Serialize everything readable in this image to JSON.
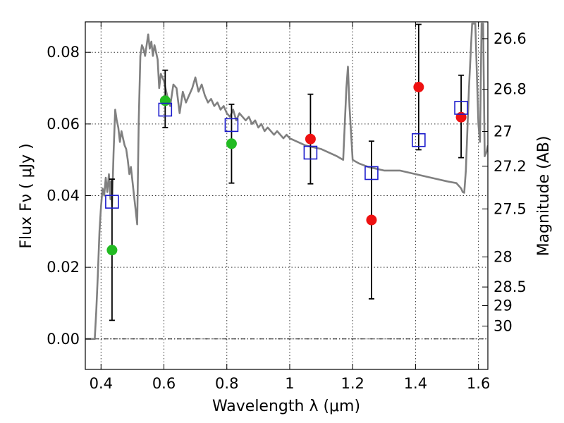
{
  "chart_data": {
    "type": "scatter",
    "xlabel": "Wavelength  λ (μm)",
    "ylabel": "Flux  Fν  ( μJy )",
    "ylabel_right": "Magnitude (AB)",
    "xlim": [
      0.35,
      1.63
    ],
    "ylim": [
      -0.0085,
      0.0885
    ],
    "x_ticks": [
      0.4,
      0.6,
      0.8,
      1.0,
      1.2,
      1.4,
      1.6
    ],
    "x_tick_labels": [
      "0.4",
      "0.6",
      "0.8",
      "1",
      "1.2",
      "1.4",
      "1.6"
    ],
    "y_ticks": [
      0.0,
      0.02,
      0.04,
      0.06,
      0.08
    ],
    "y_tick_labels": [
      "0.00",
      "0.02",
      "0.04",
      "0.06",
      "0.08"
    ],
    "right_ticks": [
      {
        "label": "26.6",
        "flux": 0.0838
      },
      {
        "label": "26.8",
        "flux": 0.0697
      },
      {
        "label": "27",
        "flux": 0.0579
      },
      {
        "label": "27.2",
        "flux": 0.0482
      },
      {
        "label": "27.5",
        "flux": 0.0363
      },
      {
        "label": "28",
        "flux": 0.0229
      },
      {
        "label": "28.5",
        "flux": 0.0145
      },
      {
        "label": "29",
        "flux": 0.0093
      },
      {
        "label": "30",
        "flux": 0.0036
      }
    ],
    "grid": true,
    "colors": {
      "model": "#808080",
      "green_points": "#22bb22",
      "red_points": "#ee1111",
      "model_points": "#1a1acc",
      "errorbar": "#000000"
    },
    "model_spectrum": {
      "x": [
        0.35,
        0.38,
        0.385,
        0.39,
        0.395,
        0.4,
        0.405,
        0.41,
        0.415,
        0.42,
        0.425,
        0.43,
        0.432,
        0.435,
        0.44,
        0.445,
        0.45,
        0.455,
        0.46,
        0.465,
        0.47,
        0.475,
        0.48,
        0.485,
        0.49,
        0.495,
        0.5,
        0.505,
        0.51,
        0.515,
        0.52,
        0.525,
        0.53,
        0.535,
        0.54,
        0.545,
        0.55,
        0.555,
        0.56,
        0.565,
        0.57,
        0.575,
        0.58,
        0.585,
        0.59,
        0.6,
        0.61,
        0.62,
        0.63,
        0.64,
        0.65,
        0.66,
        0.67,
        0.68,
        0.69,
        0.7,
        0.71,
        0.72,
        0.73,
        0.74,
        0.75,
        0.76,
        0.77,
        0.78,
        0.79,
        0.8,
        0.81,
        0.82,
        0.83,
        0.84,
        0.85,
        0.86,
        0.87,
        0.88,
        0.89,
        0.9,
        0.91,
        0.92,
        0.93,
        0.94,
        0.95,
        0.96,
        0.97,
        0.98,
        0.99,
        1.0,
        1.05,
        1.1,
        1.15,
        1.17,
        1.18,
        1.185,
        1.19,
        1.2,
        1.22,
        1.25,
        1.3,
        1.35,
        1.4,
        1.45,
        1.5,
        1.53,
        1.535,
        1.54,
        1.545,
        1.55,
        1.555,
        1.56,
        1.57,
        1.58,
        1.59,
        1.6,
        1.605,
        1.61,
        1.615,
        1.62,
        1.625,
        1.63
      ],
      "y": [
        0.0,
        0.0,
        0.008,
        0.018,
        0.03,
        0.037,
        0.042,
        0.04,
        0.045,
        0.041,
        0.046,
        0.039,
        0.044,
        0.037,
        0.052,
        0.064,
        0.061,
        0.059,
        0.055,
        0.058,
        0.056,
        0.054,
        0.053,
        0.05,
        0.046,
        0.048,
        0.044,
        0.04,
        0.036,
        0.032,
        0.061,
        0.079,
        0.082,
        0.081,
        0.079,
        0.082,
        0.085,
        0.081,
        0.083,
        0.079,
        0.082,
        0.08,
        0.078,
        0.07,
        0.074,
        0.072,
        0.068,
        0.065,
        0.071,
        0.07,
        0.063,
        0.069,
        0.066,
        0.068,
        0.07,
        0.073,
        0.069,
        0.071,
        0.068,
        0.066,
        0.067,
        0.065,
        0.066,
        0.064,
        0.065,
        0.063,
        0.062,
        0.064,
        0.061,
        0.063,
        0.062,
        0.061,
        0.062,
        0.06,
        0.061,
        0.059,
        0.06,
        0.058,
        0.059,
        0.058,
        0.057,
        0.058,
        0.057,
        0.056,
        0.057,
        0.056,
        0.054,
        0.053,
        0.051,
        0.05,
        0.07,
        0.076,
        0.065,
        0.05,
        0.049,
        0.048,
        0.047,
        0.047,
        0.046,
        0.045,
        0.044,
        0.0435,
        0.043,
        0.0425,
        0.042,
        0.041,
        0.0408,
        0.047,
        0.07,
        0.088,
        0.088,
        0.06,
        0.055,
        0.088,
        0.088,
        0.051,
        0.052,
        0.054
      ]
    },
    "green_points": {
      "x": [
        0.435,
        0.604,
        0.815
      ],
      "y": [
        0.0248,
        0.0665,
        0.0545
      ],
      "err_low": [
        0.0196,
        0.0075,
        0.011
      ],
      "err_high": [
        0.0198,
        0.0085,
        0.011
      ]
    },
    "red_points": {
      "x": [
        1.066,
        1.26,
        1.41,
        1.545
      ],
      "y": [
        0.0558,
        0.0332,
        0.0703,
        0.0619
      ],
      "err_low": [
        0.0125,
        0.022,
        0.0175,
        0.0113
      ],
      "err_high": [
        0.0125,
        0.022,
        0.0175,
        0.0117
      ]
    },
    "model_points": {
      "x": [
        0.435,
        0.604,
        0.815,
        1.066,
        1.26,
        1.41,
        1.545
      ],
      "y": [
        0.0383,
        0.064,
        0.0597,
        0.052,
        0.0463,
        0.0555,
        0.0645
      ]
    }
  }
}
